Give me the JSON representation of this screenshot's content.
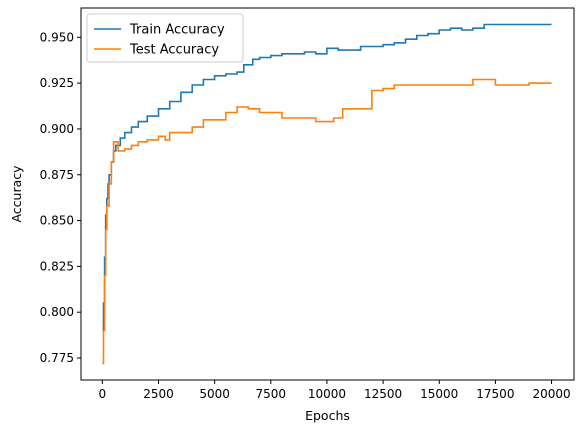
{
  "chart_data": {
    "type": "line",
    "xlabel": "Epochs",
    "ylabel": "Accuracy",
    "xlim": [
      -950,
      21000
    ],
    "ylim": [
      0.763,
      0.966
    ],
    "xticks": [
      0,
      2500,
      5000,
      7500,
      10000,
      12500,
      15000,
      17500,
      20000
    ],
    "yticks": [
      0.775,
      0.8,
      0.825,
      0.85,
      0.875,
      0.9,
      0.925,
      0.95
    ],
    "xtick_labels": [
      "0",
      "2500",
      "5000",
      "7500",
      "10000",
      "12500",
      "15000",
      "17500",
      "20000"
    ],
    "ytick_labels": [
      "0.775",
      "0.800",
      "0.825",
      "0.850",
      "0.875",
      "0.900",
      "0.925",
      "0.950"
    ],
    "grid": false,
    "legend_position": "top-left",
    "series": [
      {
        "name": "Train Accuracy",
        "color": "#1f77b4",
        "x": [
          0,
          50,
          100,
          150,
          200,
          250,
          300,
          400,
          500,
          600,
          800,
          1000,
          1300,
          1600,
          2000,
          2500,
          3000,
          3500,
          4000,
          4500,
          5000,
          5500,
          6000,
          6300,
          6700,
          7000,
          7500,
          8000,
          8500,
          9000,
          9500,
          10000,
          10500,
          11000,
          11500,
          12000,
          12500,
          13000,
          13500,
          14000,
          14500,
          15000,
          15500,
          16000,
          16500,
          17000,
          17500,
          18000,
          18500,
          19000,
          19500,
          20000
        ],
        "y": [
          0.79,
          0.805,
          0.83,
          0.853,
          0.862,
          0.87,
          0.875,
          0.882,
          0.888,
          0.891,
          0.895,
          0.898,
          0.901,
          0.904,
          0.907,
          0.911,
          0.915,
          0.92,
          0.924,
          0.927,
          0.929,
          0.93,
          0.931,
          0.935,
          0.938,
          0.939,
          0.94,
          0.941,
          0.941,
          0.942,
          0.941,
          0.944,
          0.943,
          0.943,
          0.945,
          0.945,
          0.946,
          0.947,
          0.949,
          0.951,
          0.952,
          0.954,
          0.955,
          0.954,
          0.955,
          0.957,
          0.957,
          0.957,
          0.957,
          0.957,
          0.957,
          0.957
        ]
      },
      {
        "name": "Test Accuracy",
        "color": "#ff7f0e",
        "x": [
          0,
          50,
          100,
          150,
          200,
          300,
          400,
          500,
          700,
          1000,
          1300,
          1600,
          2000,
          2500,
          2800,
          3000,
          3500,
          4000,
          4500,
          5000,
          5500,
          6000,
          6500,
          7000,
          7500,
          8000,
          8500,
          9000,
          9500,
          10000,
          10300,
          10700,
          11000,
          11500,
          12000,
          12500,
          13000,
          13500,
          14000,
          14500,
          15000,
          15500,
          16000,
          16500,
          17000,
          17500,
          18000,
          18500,
          19000,
          19500,
          20000
        ],
        "y": [
          0.772,
          0.79,
          0.82,
          0.845,
          0.858,
          0.87,
          0.882,
          0.893,
          0.888,
          0.889,
          0.891,
          0.893,
          0.894,
          0.896,
          0.894,
          0.898,
          0.898,
          0.901,
          0.905,
          0.905,
          0.909,
          0.912,
          0.911,
          0.909,
          0.909,
          0.906,
          0.906,
          0.906,
          0.904,
          0.904,
          0.906,
          0.911,
          0.911,
          0.911,
          0.921,
          0.922,
          0.924,
          0.924,
          0.924,
          0.924,
          0.924,
          0.924,
          0.924,
          0.927,
          0.927,
          0.924,
          0.924,
          0.924,
          0.925,
          0.925,
          0.925
        ]
      }
    ]
  }
}
